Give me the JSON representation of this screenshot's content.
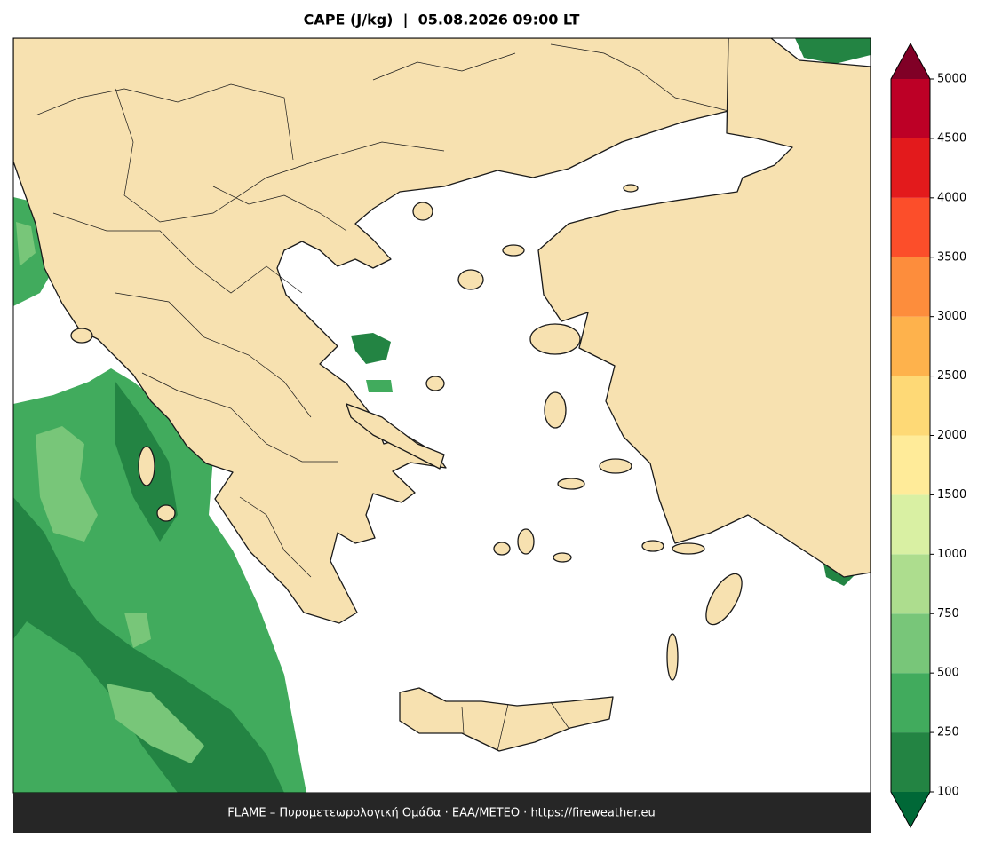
{
  "map": {
    "title": "CAPE (J/kg)  |  05.08.2026 09:00 LT",
    "footer": "FLAME – Πυρομετεωρολογική Ομάδα · ΕΑΑ/METEO · https://fireweather.eu",
    "colorbar": {
      "ticks": [
        100,
        250,
        500,
        750,
        1000,
        1500,
        2000,
        2500,
        3000,
        3500,
        4000,
        4500,
        5000
      ],
      "colors": [
        "#238443",
        "#41ab5d",
        "#78c679",
        "#addd8e",
        "#d9f0a3",
        "#ffeb99",
        "#fed976",
        "#feb24c",
        "#fd8d3c",
        "#fc4e2a",
        "#e31a1c",
        "#bd0026"
      ],
      "under_color": "#006837",
      "over_color": "#800026"
    }
  }
}
